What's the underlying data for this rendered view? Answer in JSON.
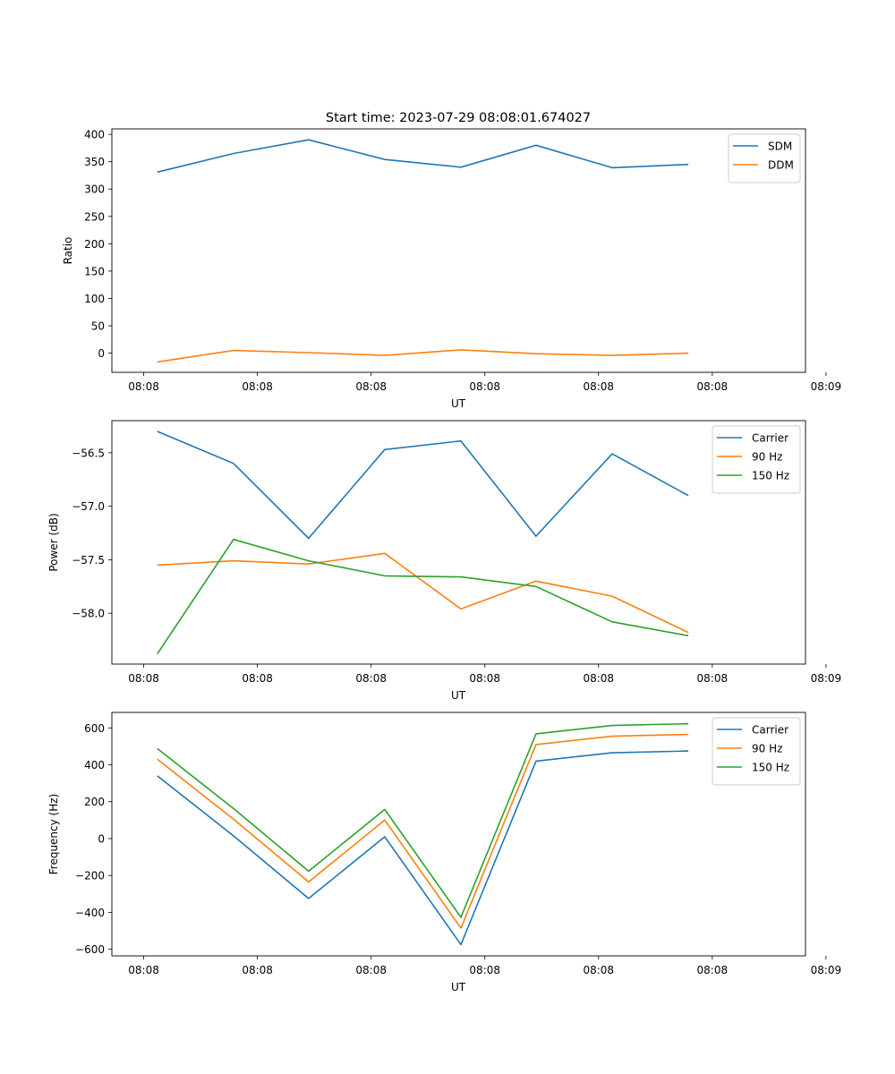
{
  "figure_title": "Start time: 2023-07-29 08:08:01.674027",
  "chart_data": [
    {
      "type": "line",
      "title": "Start time: 2023-07-29 08:08:01.674027",
      "xlabel": "UT",
      "ylabel": "Ratio",
      "x": [
        0.4,
        1.07,
        1.73,
        2.4,
        3.07,
        3.73,
        4.4,
        5.07
      ],
      "xlim": [
        0,
        6.1
      ],
      "xticks": [
        0.28,
        1.28,
        2.28,
        3.28,
        4.28,
        5.28,
        6.28
      ],
      "xtick_labels": [
        "08:08",
        "08:08",
        "08:08",
        "08:08",
        "08:08",
        "08:08",
        "08:09"
      ],
      "ylim": [
        -35,
        410
      ],
      "yticks": [
        0,
        50,
        100,
        150,
        200,
        250,
        300,
        350,
        400
      ],
      "ytick_labels": [
        "0",
        "50",
        "100",
        "150",
        "200",
        "250",
        "300",
        "350",
        "400"
      ],
      "grid": false,
      "legend_position": "top-right",
      "series": [
        {
          "name": "SDM",
          "color": "#1f77b4",
          "values": [
            331,
            365,
            390,
            354,
            340,
            380,
            339,
            345
          ]
        },
        {
          "name": "DDM",
          "color": "#ff7f0e",
          "values": [
            -16,
            5,
            1,
            -4,
            6,
            -1,
            -4,
            0
          ]
        }
      ]
    },
    {
      "type": "line",
      "title": "",
      "xlabel": "UT",
      "ylabel": "Power (dB)",
      "x": [
        0.4,
        1.07,
        1.73,
        2.4,
        3.07,
        3.73,
        4.4,
        5.07
      ],
      "xlim": [
        0,
        6.1
      ],
      "xticks": [
        0.28,
        1.28,
        2.28,
        3.28,
        4.28,
        5.28,
        6.28
      ],
      "xtick_labels": [
        "08:08",
        "08:08",
        "08:08",
        "08:08",
        "08:08",
        "08:08",
        "08:09"
      ],
      "ylim": [
        -58.475,
        -56.2
      ],
      "yticks": [
        -58.0,
        -57.5,
        -57.0,
        -56.5
      ],
      "ytick_labels": [
        "−58.0",
        "−57.5",
        "−57.0",
        "−56.5"
      ],
      "grid": false,
      "legend_position": "top-right",
      "series": [
        {
          "name": "Carrier",
          "color": "#1f77b4",
          "values": [
            -56.3,
            -56.6,
            -57.3,
            -56.47,
            -56.39,
            -57.28,
            -56.51,
            -56.9
          ]
        },
        {
          "name": "90 Hz",
          "color": "#ff7f0e",
          "values": [
            -57.55,
            -57.51,
            -57.54,
            -57.44,
            -57.96,
            -57.7,
            -57.84,
            -58.18
          ]
        },
        {
          "name": "150 Hz",
          "color": "#2ca02c",
          "values": [
            -58.38,
            -57.31,
            -57.51,
            -57.65,
            -57.66,
            -57.75,
            -58.08,
            -58.21
          ]
        }
      ]
    },
    {
      "type": "line",
      "title": "",
      "xlabel": "UT",
      "ylabel": "Frequency (Hz)",
      "x": [
        0.4,
        1.07,
        1.73,
        2.4,
        3.07,
        3.73,
        4.4,
        5.07
      ],
      "xlim": [
        0,
        6.1
      ],
      "xticks": [
        0.28,
        1.28,
        2.28,
        3.28,
        4.28,
        5.28,
        6.28
      ],
      "xtick_labels": [
        "08:08",
        "08:08",
        "08:08",
        "08:08",
        "08:08",
        "08:08",
        "08:09"
      ],
      "ylim": [
        -636,
        684
      ],
      "yticks": [
        -600,
        -400,
        -200,
        0,
        200,
        400,
        600
      ],
      "ytick_labels": [
        "−600",
        "−400",
        "−200",
        "0",
        "200",
        "400",
        "600"
      ],
      "grid": false,
      "legend_position": "top-right",
      "series": [
        {
          "name": "Carrier",
          "color": "#1f77b4",
          "values": [
            340,
            15,
            -325,
            10,
            -575,
            420,
            465,
            475
          ]
        },
        {
          "name": "90 Hz",
          "color": "#ff7f0e",
          "values": [
            430,
            105,
            -235,
            100,
            -485,
            510,
            555,
            565
          ]
        },
        {
          "name": "150 Hz",
          "color": "#2ca02c",
          "values": [
            488,
            163,
            -177,
            158,
            -427,
            568,
            613,
            623
          ]
        }
      ]
    }
  ]
}
